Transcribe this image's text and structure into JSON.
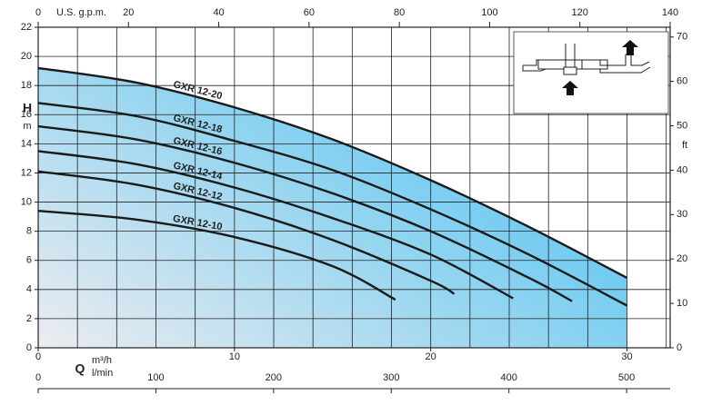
{
  "chart_data": {
    "type": "line",
    "x_label": "m³/h",
    "x_label_2": "l/min",
    "q_label": "Q",
    "y_label": "H",
    "y_unit": "m",
    "y2_label": "ft",
    "top_label": "U.S. g.p.m.",
    "xlim": [
      0,
      32.2
    ],
    "xticks": [
      0,
      10,
      20,
      30
    ],
    "xgrid": [
      2,
      4,
      6,
      8,
      12,
      14,
      16,
      18,
      22,
      24,
      26,
      28,
      32
    ],
    "ylim": [
      0,
      22
    ],
    "yticks": [
      0,
      2,
      4,
      6,
      8,
      10,
      12,
      14,
      16,
      18,
      20,
      22
    ],
    "y2lim": [
      0,
      72.2
    ],
    "y2ticks": [
      0,
      10,
      20,
      30,
      40,
      50,
      60,
      70
    ],
    "toplim": [
      0,
      140
    ],
    "topticks": [
      0,
      20,
      40,
      60,
      80,
      100,
      120,
      140
    ],
    "bottom2lim": [
      0,
      537
    ],
    "bottom2ticks": [
      0,
      100,
      200,
      300,
      400,
      500
    ],
    "grid": true,
    "series": [
      {
        "name": "GXR 12-20",
        "color": "#1a1a1a",
        "x": [
          0,
          5,
          10,
          15,
          20,
          25,
          30
        ],
        "values": [
          19.2,
          18.2,
          16.5,
          14.3,
          11.5,
          8.3,
          4.8
        ]
      },
      {
        "name": "GXR 12-18",
        "color": "#1a1a1a",
        "x": [
          0,
          5,
          10,
          15,
          20,
          25,
          30
        ],
        "values": [
          16.8,
          15.9,
          14.2,
          12.2,
          9.5,
          6.4,
          2.9
        ]
      },
      {
        "name": "GXR 12-16",
        "color": "#1a1a1a",
        "x": [
          0,
          5,
          10,
          15,
          20,
          25,
          27.2
        ],
        "values": [
          15.2,
          14.3,
          12.7,
          10.6,
          8.0,
          4.8,
          3.2
        ]
      },
      {
        "name": "GXR 12-14",
        "color": "#1a1a1a",
        "x": [
          0,
          5,
          10,
          15,
          20,
          24.2
        ],
        "values": [
          13.5,
          12.6,
          11.0,
          8.9,
          6.4,
          3.4
        ]
      },
      {
        "name": "GXR 12-12",
        "color": "#1a1a1a",
        "x": [
          0,
          5,
          10,
          15,
          20,
          21.2
        ],
        "values": [
          12.1,
          11.2,
          9.6,
          7.4,
          4.6,
          3.7
        ]
      },
      {
        "name": "GXR 12-10",
        "color": "#1a1a1a",
        "x": [
          0,
          5,
          10,
          15,
          18.2
        ],
        "values": [
          9.4,
          8.8,
          7.6,
          5.6,
          3.3
        ]
      }
    ]
  }
}
